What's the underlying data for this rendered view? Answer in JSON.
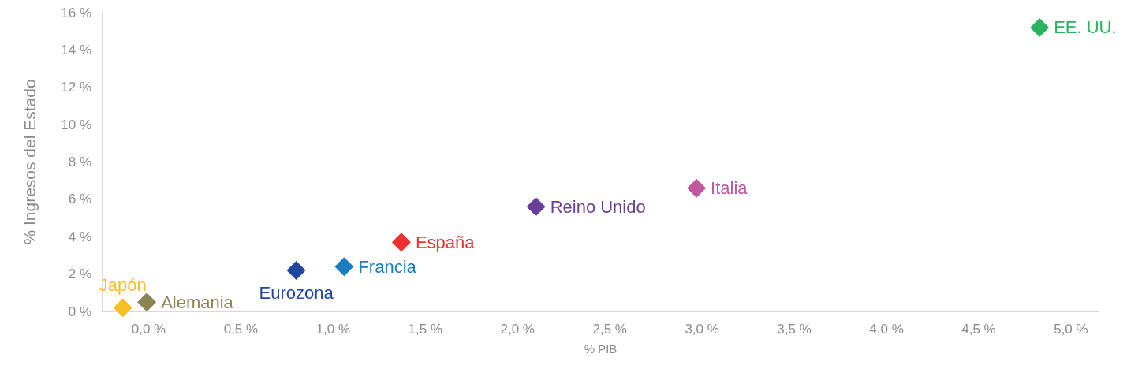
{
  "chart_data": {
    "type": "scatter",
    "xlabel": "% PIB",
    "ylabel": "% Ingresos del Estado",
    "xlim": [
      -0.25,
      5.15
    ],
    "xticks": [
      {
        "value": 0,
        "label": "0,0 %"
      },
      {
        "value": 0.5,
        "label": "0,5 %"
      },
      {
        "value": 1,
        "label": "1,0 %"
      },
      {
        "value": 1.5,
        "label": "1,5 %"
      },
      {
        "value": 2,
        "label": "2,0 %"
      },
      {
        "value": 2.5,
        "label": "2,5 %"
      },
      {
        "value": 3,
        "label": "3,0 %"
      },
      {
        "value": 3.5,
        "label": "3,5 %"
      },
      {
        "value": 4,
        "label": "4,0 %"
      },
      {
        "value": 4.5,
        "label": "4,5 %"
      },
      {
        "value": 5,
        "label": "5,0 %"
      }
    ],
    "ylim": [
      0,
      16
    ],
    "yticks": [
      {
        "value": 0,
        "label": "0 %"
      },
      {
        "value": 2,
        "label": "2 %"
      },
      {
        "value": 4,
        "label": "4 %"
      },
      {
        "value": 6,
        "label": "6 %"
      },
      {
        "value": 8,
        "label": "8 %"
      },
      {
        "value": 10,
        "label": "10 %"
      },
      {
        "value": 12,
        "label": "12 %"
      },
      {
        "value": 14,
        "label": "14 %"
      },
      {
        "value": 16,
        "label": "16 %"
      }
    ],
    "marker": "diamond",
    "grid": false,
    "legend": false,
    "series": [
      {
        "name": "EE. UU.",
        "color": "#2bb35f",
        "x": [
          4.83
        ],
        "values": [
          15.2
        ]
      },
      {
        "name": "Italia",
        "color": "#c058a0",
        "x": [
          2.97
        ],
        "values": [
          6.6
        ]
      },
      {
        "name": "Reino Unido",
        "color": "#6a3f9c",
        "x": [
          2.1
        ],
        "values": [
          5.6
        ]
      },
      {
        "name": "España",
        "color": "#ee3030",
        "x": [
          1.37
        ],
        "values": [
          3.7
        ]
      },
      {
        "name": "Francia",
        "color": "#1a7cc1",
        "x": [
          1.06
        ],
        "values": [
          2.4
        ]
      },
      {
        "name": "Eurozona",
        "color": "#1f47a0",
        "x": [
          0.8
        ],
        "values": [
          2.2
        ]
      },
      {
        "name": "Alemania",
        "color": "#8a8457",
        "x": [
          -0.01
        ],
        "values": [
          0.5
        ]
      },
      {
        "name": "Japón",
        "color": "#f6bf26",
        "x": [
          -0.14
        ],
        "values": [
          0.2
        ]
      }
    ]
  }
}
